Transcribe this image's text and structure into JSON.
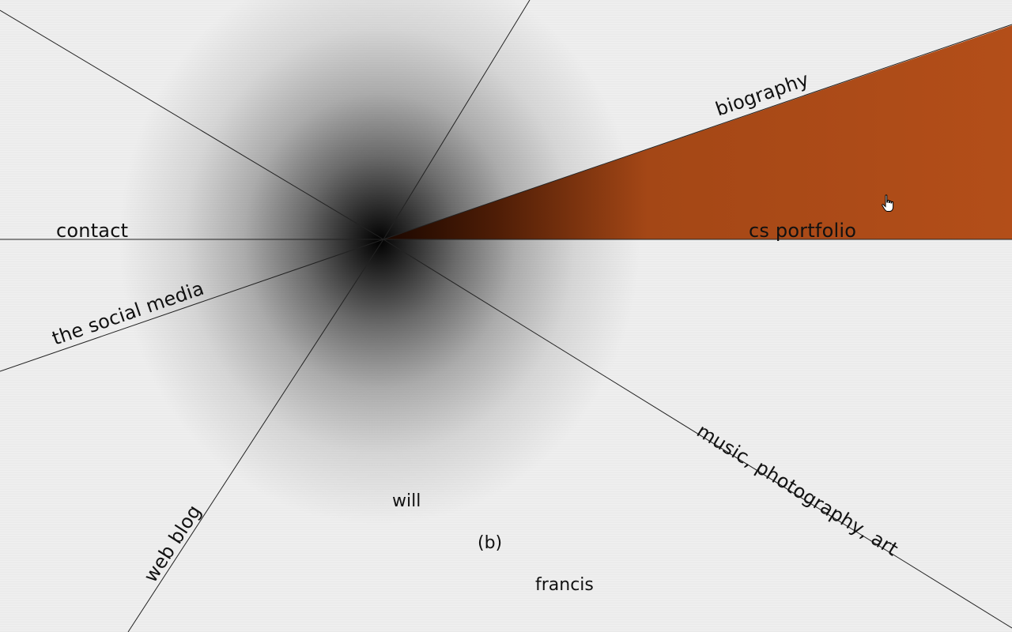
{
  "nav": {
    "biography": "biography",
    "cs_portfolio": "cs portfolio",
    "contact": "contact",
    "social_media": "the social media",
    "web_blog": "web blog",
    "music_photo_art": "music, photography, art"
  },
  "name": {
    "first": "will",
    "middle": "(b)",
    "last": "francis"
  },
  "colors": {
    "active_segment": "#b04c18",
    "background": "#efefef",
    "line": "#222222"
  },
  "active_item": "cs portfolio"
}
